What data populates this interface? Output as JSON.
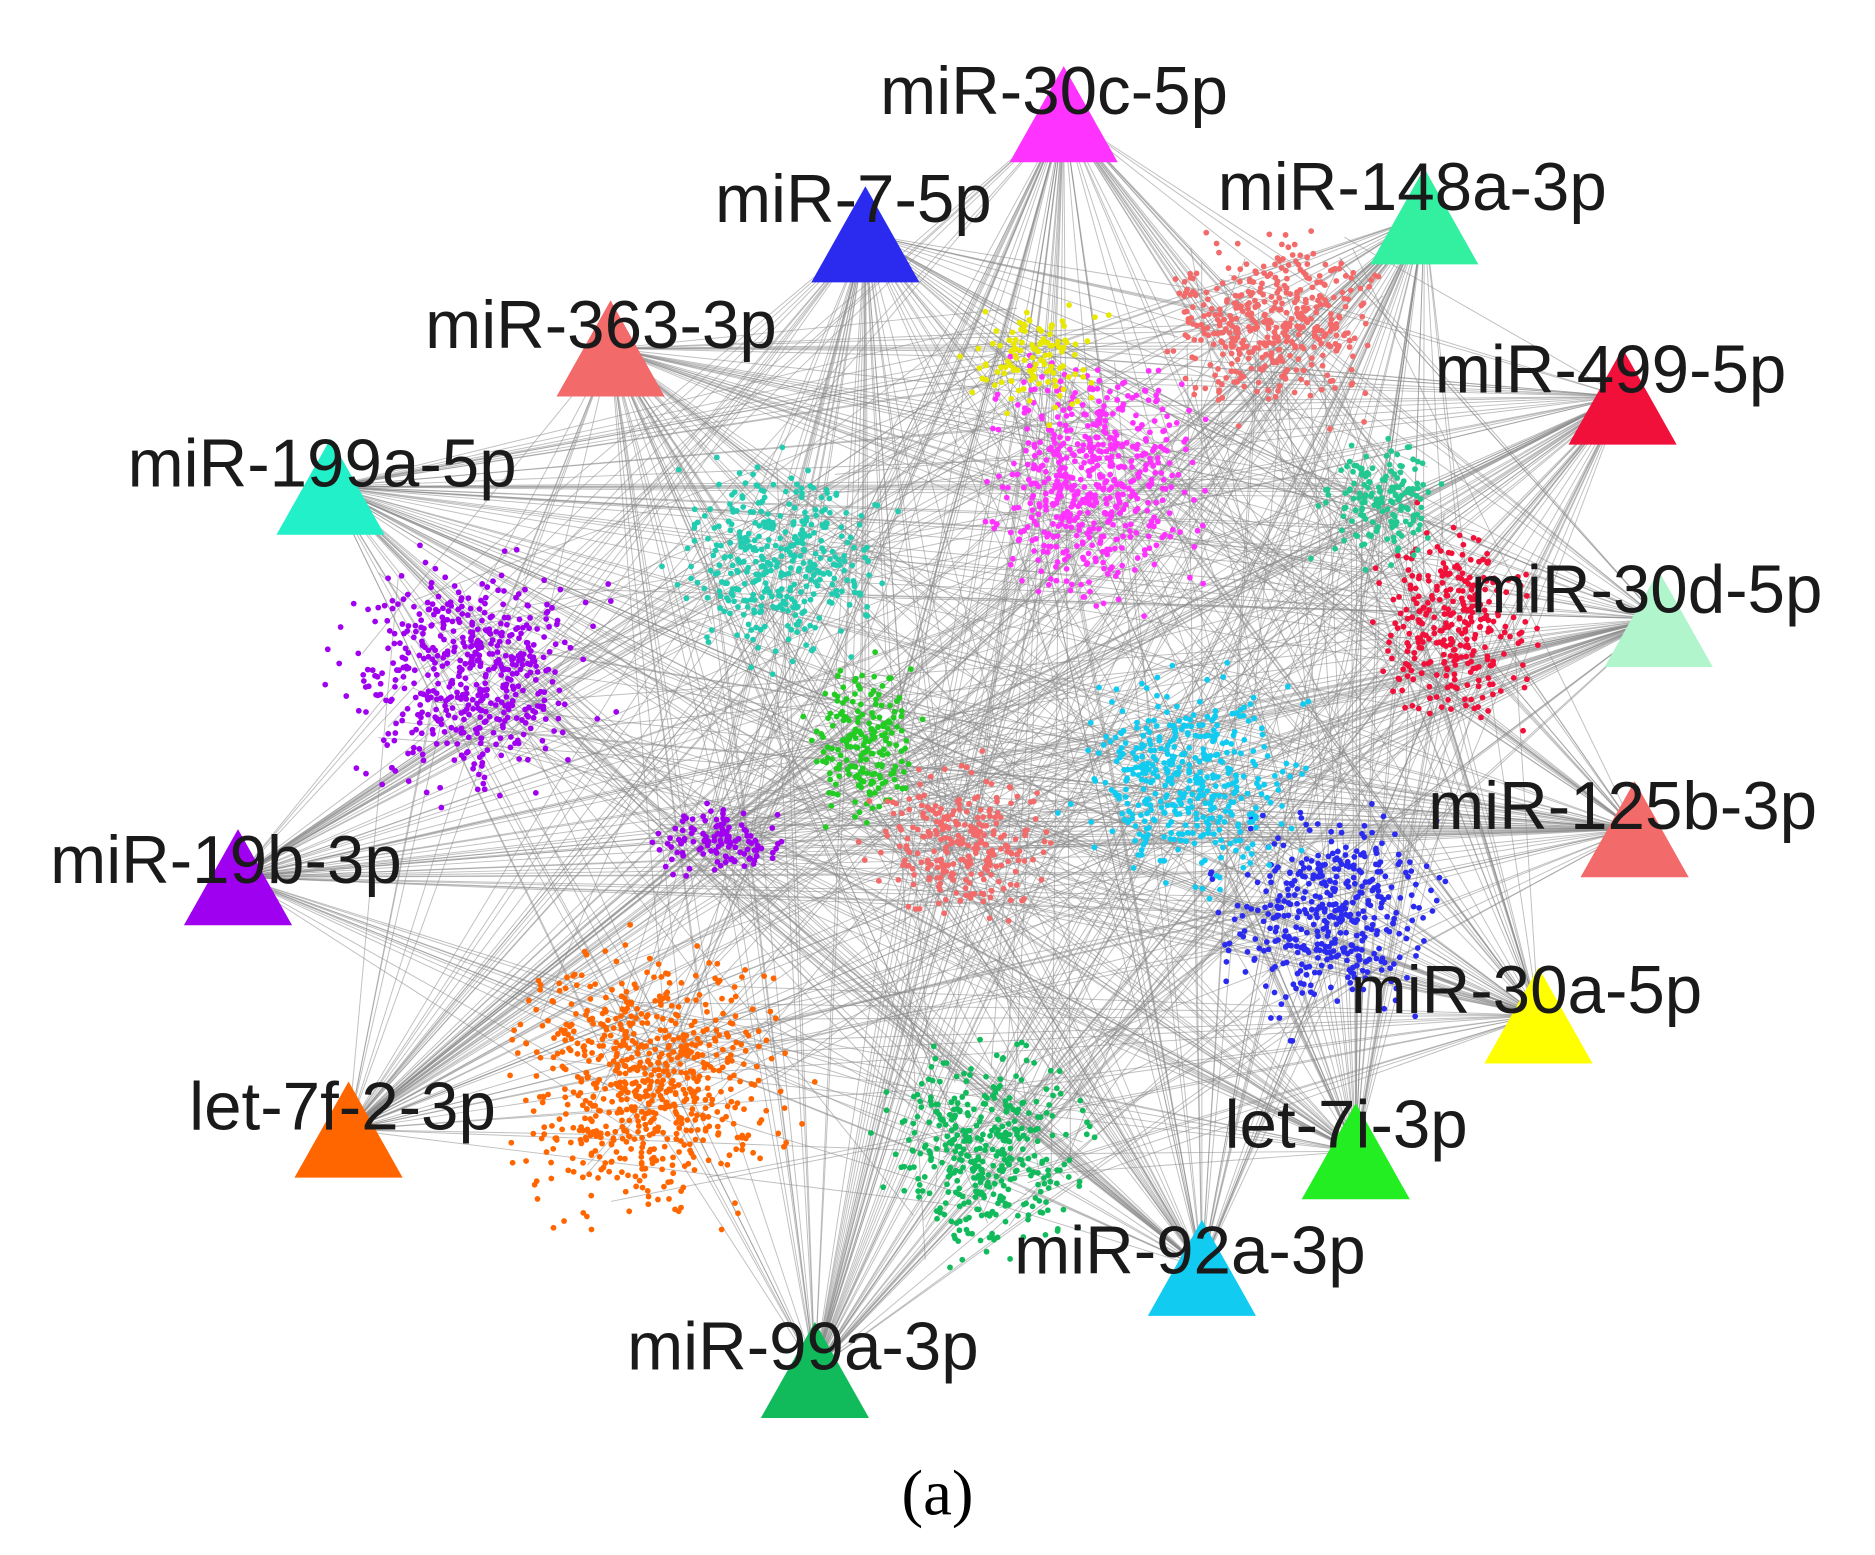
{
  "nodes": [
    {
      "label": "miR-30c-5p",
      "color": "#ff33ff"
    },
    {
      "label": "miR-7-5p",
      "color": "#2b2bf0"
    },
    {
      "label": "miR-148a-3p",
      "color": "#33f0a0"
    },
    {
      "label": "miR-363-3p",
      "color": "#f26a6a"
    },
    {
      "label": "miR-499-5p",
      "color": "#f0103a"
    },
    {
      "label": "miR-199a-5p",
      "color": "#22f0c8"
    },
    {
      "label": "miR-30d-5p",
      "color": "#b0f5cc"
    },
    {
      "label": "miR-19b-3p",
      "color": "#a000f0"
    },
    {
      "label": "miR-125b-3p",
      "color": "#f26a6a"
    },
    {
      "label": "miR-30a-5p",
      "color": "#ffff00"
    },
    {
      "label": "let-7f-2-3p",
      "color": "#ff6600"
    },
    {
      "label": "let-7i-3p",
      "color": "#22ee22"
    },
    {
      "label": "miR-92a-3p",
      "color": "#11ccf0"
    },
    {
      "label": "miR-99a-3p",
      "color": "#11bb5c"
    }
  ],
  "caption": "(a)"
}
